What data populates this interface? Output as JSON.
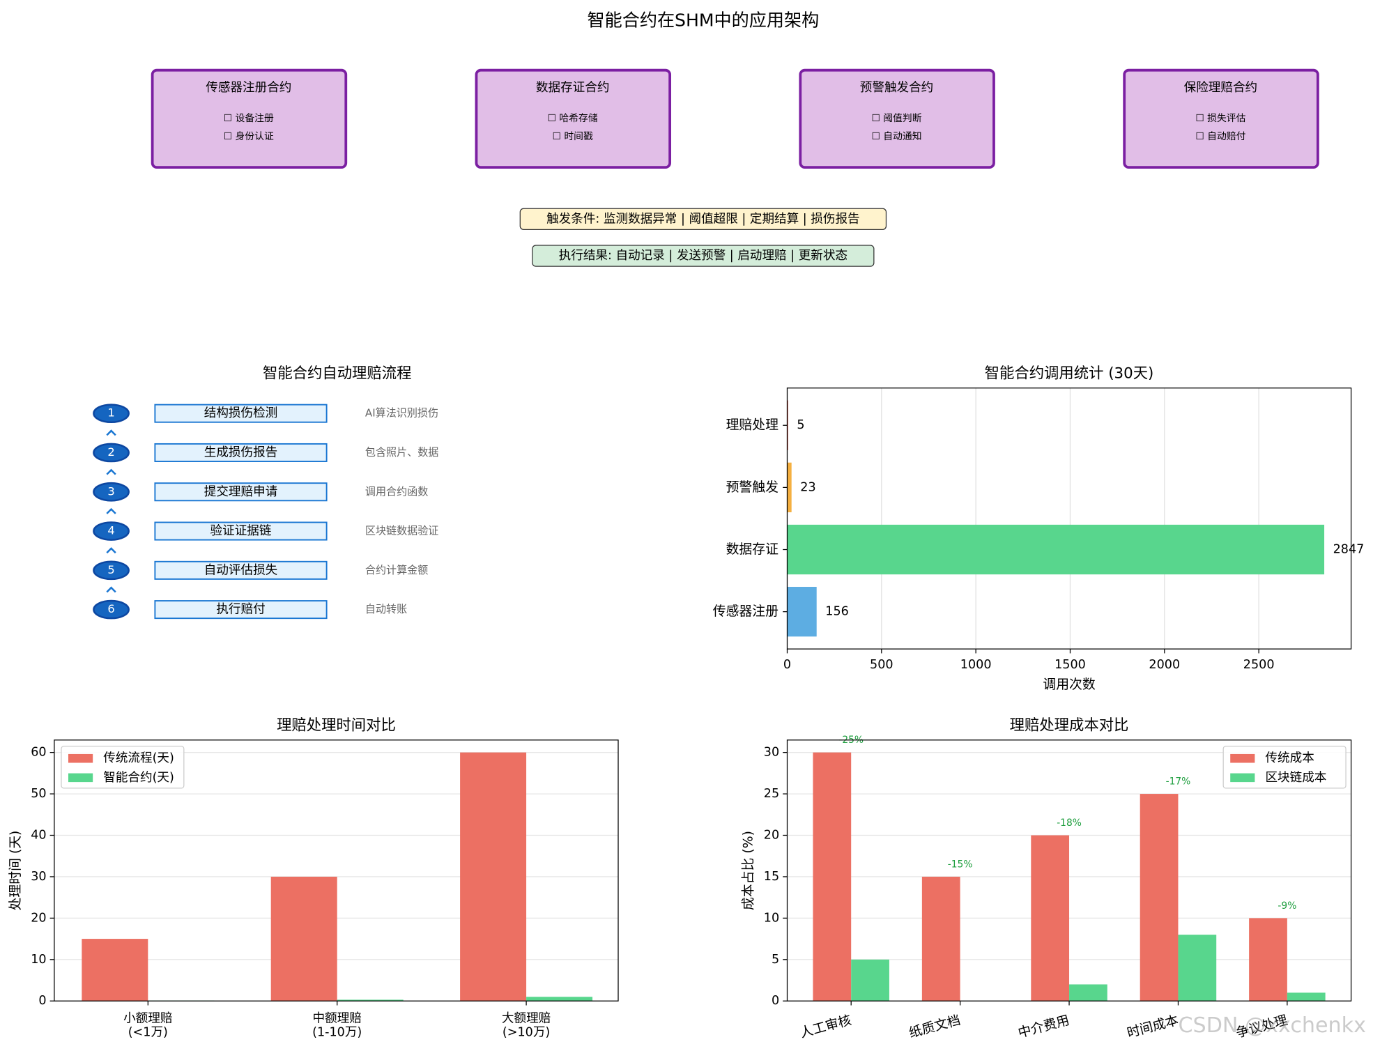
{
  "architecture": {
    "title": "智能合约在SHM中的应用架构",
    "contracts": [
      {
        "title": "传感器注册合约",
        "items": [
          "☐ 设备注册",
          "☐ 身份认证"
        ]
      },
      {
        "title": "数据存证合约",
        "items": [
          "☐ 哈希存储",
          "☐ 时间戳"
        ]
      },
      {
        "title": "预警触发合约",
        "items": [
          "☐ 阈值判断",
          "☐ 自动通知"
        ]
      },
      {
        "title": "保险理赔合约",
        "items": [
          "☐ 损失评估",
          "☐ 自动赔付"
        ]
      }
    ],
    "triggers": "触发条件: 监测数据异常 | 阈值超限 | 定期结算 | 损伤报告",
    "results": "执行结果: 自动记录 | 发送预警 | 启动理赔 | 更新状态"
  },
  "flow": {
    "title": "智能合约自动理赔流程",
    "steps": [
      {
        "num": 1,
        "label": "结构损伤检测",
        "desc": "AI算法识别损伤"
      },
      {
        "num": 2,
        "label": "生成损伤报告",
        "desc": "包含照片、数据"
      },
      {
        "num": 3,
        "label": "提交理赔申请",
        "desc": "调用合约函数"
      },
      {
        "num": 4,
        "label": "验证证据链",
        "desc": "区块链数据验证"
      },
      {
        "num": 5,
        "label": "自动评估损失",
        "desc": "合约计算金额"
      },
      {
        "num": 6,
        "label": "执行赔付",
        "desc": "自动转账"
      }
    ]
  },
  "chart_data": [
    {
      "type": "barh",
      "title": "智能合约调用统计 (30天)",
      "xlabel": "调用次数",
      "categories": [
        "传感器注册",
        "数据存证",
        "预警触发",
        "理赔处理"
      ],
      "values": [
        156,
        2847,
        23,
        5
      ],
      "colors": [
        "#5dade2",
        "#58d68d",
        "#f5b041",
        "#ec7063"
      ],
      "xlim": [
        0,
        2989.35
      ],
      "xticks": [
        0,
        500,
        1000,
        1500,
        2000,
        2500
      ],
      "grid": true
    },
    {
      "type": "bar",
      "title": "理赔处理时间对比",
      "ylabel": "处理时间 (天)",
      "categories": [
        [
          "小额理赔",
          "(<1万)"
        ],
        [
          "中额理赔",
          "(1-10万)"
        ],
        [
          "大额理赔",
          "(>10万)"
        ]
      ],
      "series": [
        {
          "name": "传统流程(天)",
          "color": "#ec7063",
          "values": [
            15,
            30,
            60
          ]
        },
        {
          "name": "智能合约(天)",
          "color": "#58d68d",
          "values": [
            0.1,
            0.3,
            1
          ]
        }
      ],
      "ylim": [
        0,
        63
      ],
      "yticks": [
        0,
        10,
        20,
        30,
        40,
        50,
        60
      ],
      "grid": true,
      "legend": "upper left"
    },
    {
      "type": "bar",
      "title": "理赔处理成本对比",
      "ylabel": "成本占比 (%)",
      "categories": [
        [
          "人工审核"
        ],
        [
          "纸质文档"
        ],
        [
          "中介费用"
        ],
        [
          "时间成本"
        ],
        [
          "争议处理"
        ]
      ],
      "series": [
        {
          "name": "传统成本",
          "color": "#ec7063",
          "values": [
            30,
            15,
            20,
            25,
            10
          ]
        },
        {
          "name": "区块链成本",
          "color": "#58d68d",
          "values": [
            5,
            0,
            2,
            8,
            1
          ]
        }
      ],
      "annotations": [
        "-25%",
        "-15%",
        "-18%",
        "-17%",
        "-9%"
      ],
      "ylim": [
        0,
        31.5
      ],
      "yticks": [
        0,
        5,
        10,
        15,
        20,
        25,
        30
      ],
      "grid": true,
      "legend": "upper right"
    }
  ],
  "watermark": "CSDN @xxchenkx"
}
